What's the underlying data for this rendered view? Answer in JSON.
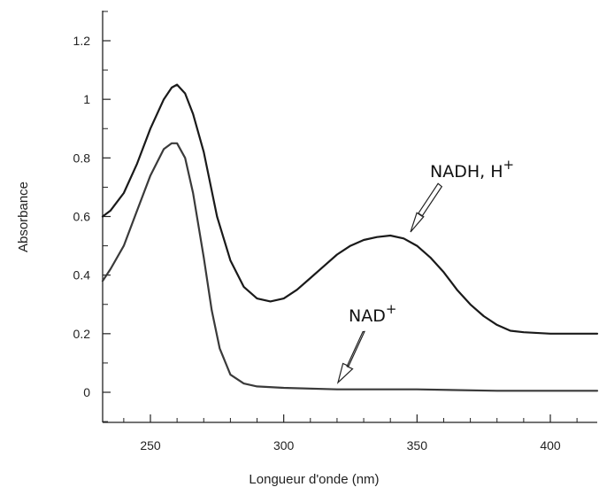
{
  "chart_data": {
    "type": "line",
    "title": "",
    "xlabel": "Longueur d'onde (nm)",
    "ylabel": "Absorbance",
    "xlim": [
      230,
      418
    ],
    "ylim": [
      -0.1,
      1.3
    ],
    "xticks": [
      250,
      300,
      350,
      400
    ],
    "yticks": [
      0,
      0.2,
      0.4,
      0.6,
      0.8,
      1,
      1.2
    ],
    "ytick_labels": [
      "0",
      "0.2",
      "0.4",
      "0.6",
      "0.8",
      "1",
      "1.2"
    ],
    "grid": false,
    "series": [
      {
        "name": "NADH, H+",
        "color": "#1a1a1a",
        "x": [
          230,
          235,
          240,
          245,
          250,
          255,
          258,
          260,
          263,
          266,
          270,
          275,
          280,
          285,
          290,
          295,
          300,
          305,
          310,
          315,
          320,
          325,
          330,
          335,
          340,
          345,
          350,
          355,
          360,
          365,
          370,
          375,
          380,
          385,
          390,
          400,
          410,
          418
        ],
        "y": [
          0.6,
          0.62,
          0.68,
          0.78,
          0.9,
          1.0,
          1.04,
          1.05,
          1.02,
          0.95,
          0.82,
          0.6,
          0.45,
          0.36,
          0.32,
          0.31,
          0.32,
          0.35,
          0.39,
          0.43,
          0.47,
          0.5,
          0.52,
          0.53,
          0.535,
          0.525,
          0.5,
          0.46,
          0.41,
          0.35,
          0.3,
          0.26,
          0.23,
          0.21,
          0.205,
          0.2,
          0.2,
          0.2
        ]
      },
      {
        "name": "NAD+",
        "color": "#3a3a3a",
        "x": [
          230,
          235,
          240,
          245,
          250,
          255,
          258,
          260,
          263,
          266,
          270,
          273,
          276,
          280,
          285,
          290,
          300,
          320,
          350,
          380,
          418
        ],
        "y": [
          0.38,
          0.42,
          0.5,
          0.62,
          0.74,
          0.83,
          0.85,
          0.85,
          0.8,
          0.68,
          0.46,
          0.28,
          0.15,
          0.06,
          0.03,
          0.02,
          0.015,
          0.01,
          0.01,
          0.005,
          0.005
        ]
      }
    ],
    "annotations": [
      {
        "label": "NADH, H",
        "sup": "+"
      },
      {
        "label": "NAD",
        "sup": "+"
      }
    ]
  }
}
